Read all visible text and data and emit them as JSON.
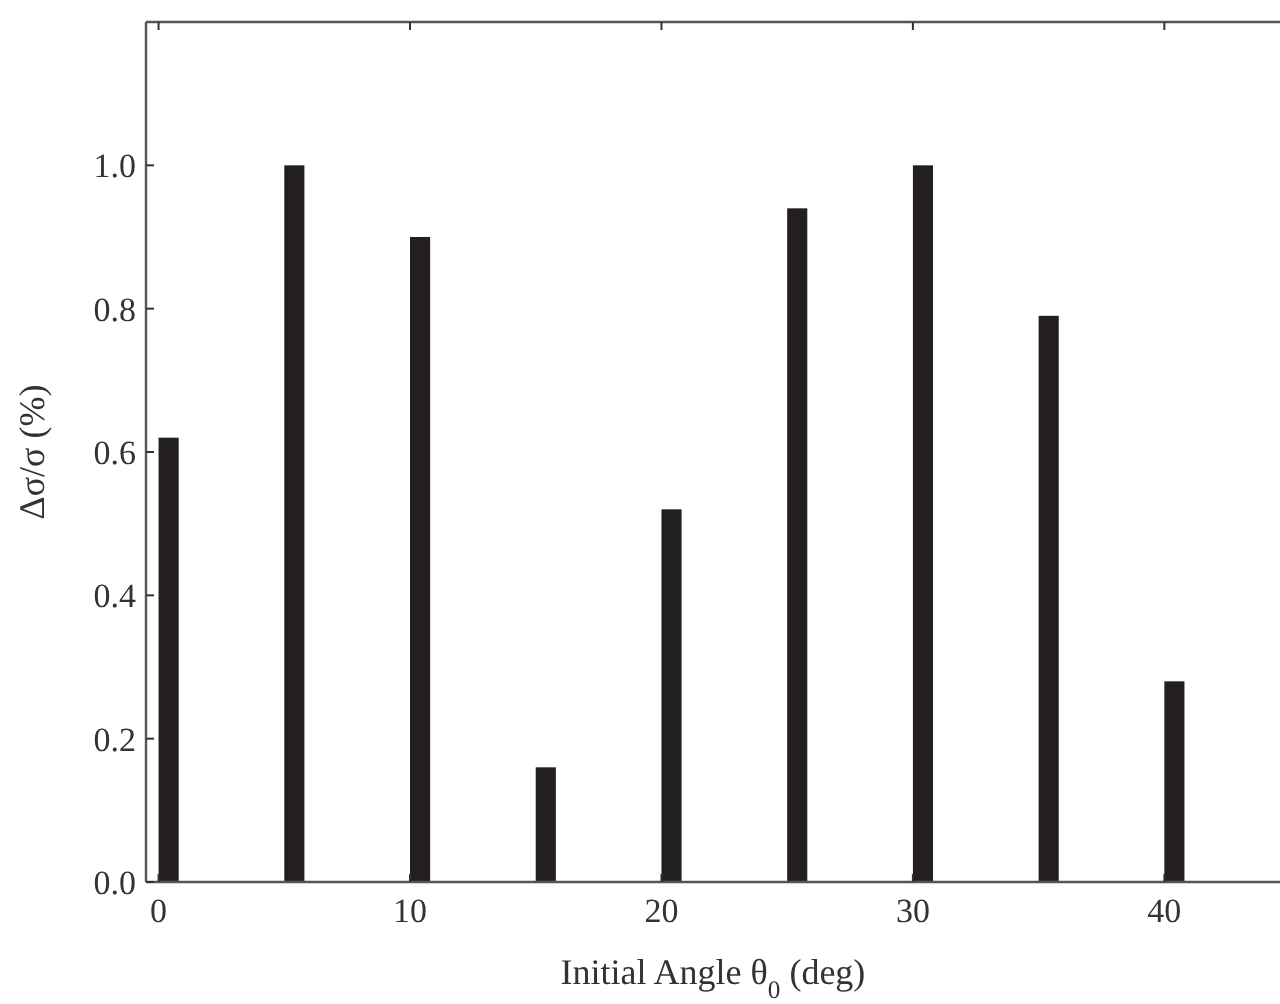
{
  "chart_data": {
    "type": "bar",
    "xlabel": "Initial Angle θ$_{0}$ (deg)",
    "ylabel": "Δσ/σ (%)",
    "x": [
      0,
      5,
      10,
      15,
      20,
      25,
      30,
      35,
      40
    ],
    "values": [
      0.62,
      1.0,
      0.9,
      0.16,
      0.52,
      0.94,
      1.0,
      0.79,
      0.28
    ],
    "color": "#231f20",
    "xlim": [
      -0.5,
      44.6
    ],
    "ylim": [
      0,
      1.2
    ],
    "xticks": [
      0,
      10,
      20,
      30,
      40
    ],
    "yticks": [
      {
        "value": 0,
        "label": "0.0"
      },
      {
        "value": 0.2,
        "label": "0.2"
      },
      {
        "value": 0.4,
        "label": "0.4"
      },
      {
        "value": 0.6,
        "label": "0.6"
      },
      {
        "value": 0.8,
        "label": "0.8"
      },
      {
        "value": 1.0,
        "label": "1.0"
      }
    ],
    "grid": false
  }
}
